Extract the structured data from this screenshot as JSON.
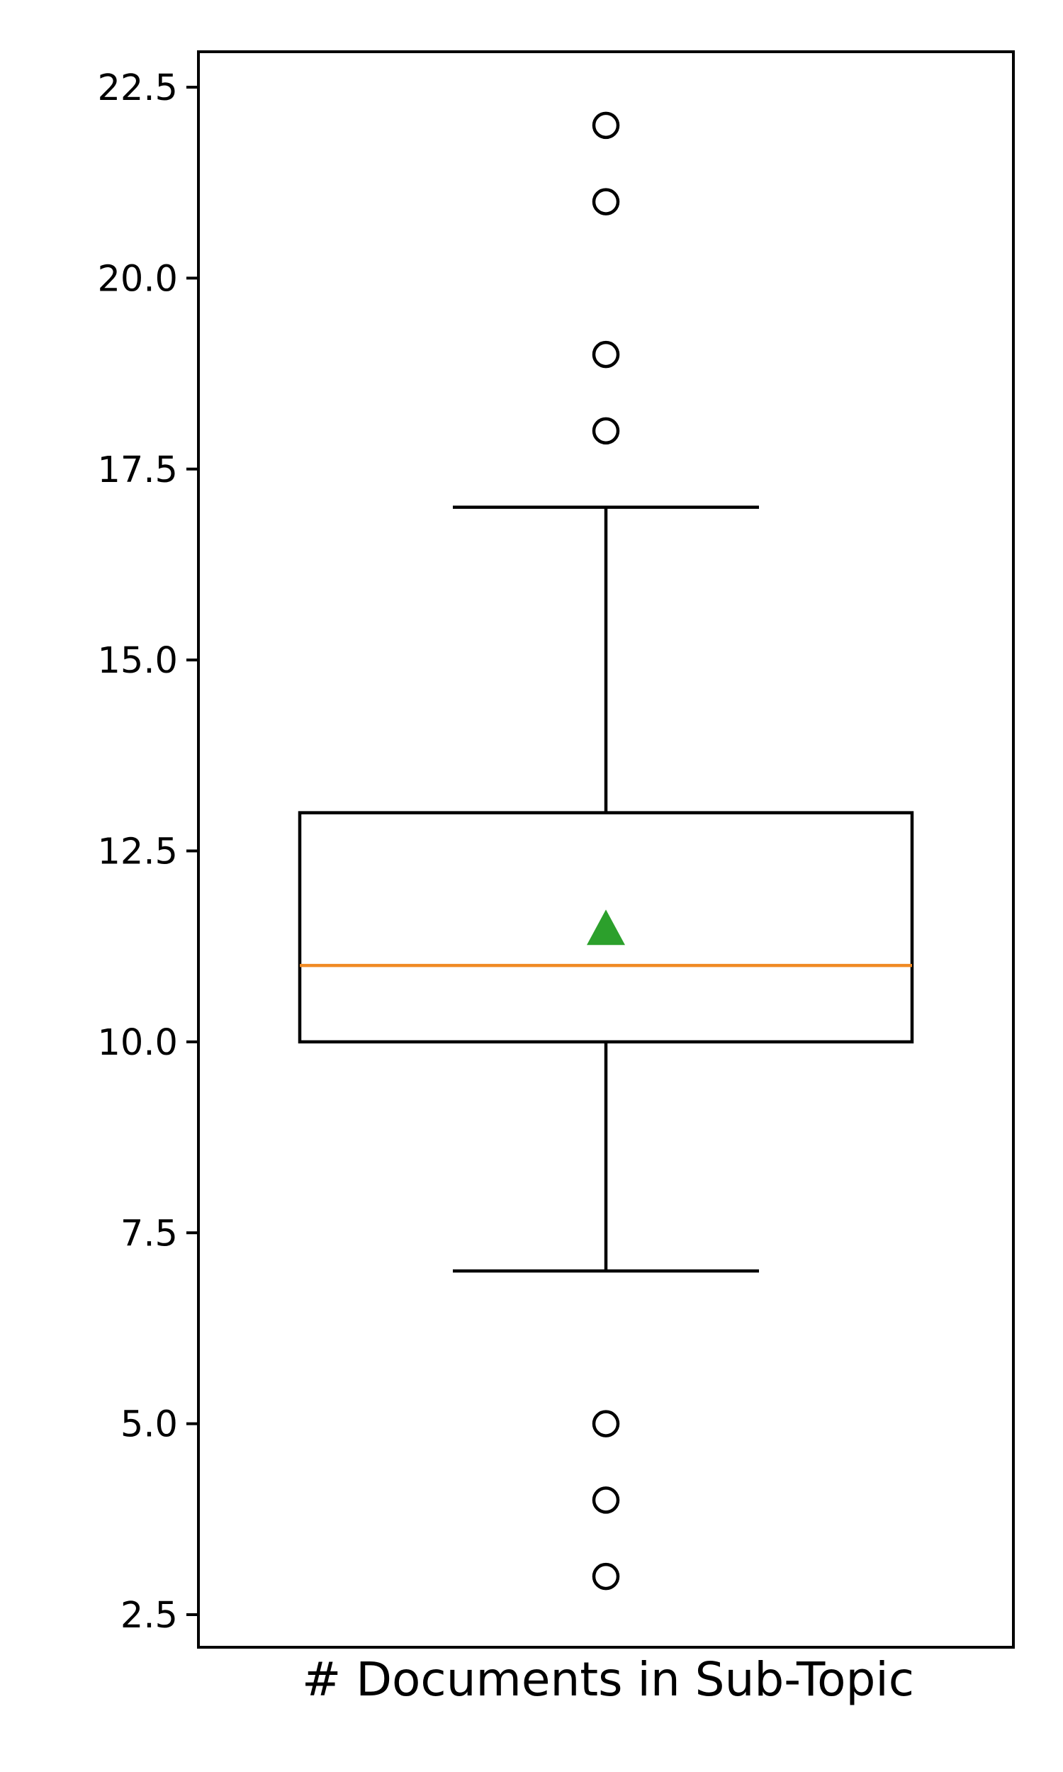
{
  "chart_data": {
    "type": "box",
    "title": "",
    "xlabel": "# Documents in Sub-Topic",
    "ylabel": "",
    "ylim": [
      2.0,
      23.0
    ],
    "yticks": [
      2.5,
      5.0,
      7.5,
      10.0,
      12.5,
      15.0,
      17.5,
      20.0,
      22.5
    ],
    "ytick_labels": [
      "2.5",
      "5.0",
      "7.5",
      "10.0",
      "12.5",
      "15.0",
      "17.5",
      "20.0",
      "22.5"
    ],
    "grid": false,
    "legend": "none",
    "box": {
      "whisker_low": 7,
      "q1": 10,
      "median": 11,
      "q3": 13,
      "whisker_high": 17,
      "mean": 11.5,
      "outliers": [
        3,
        4,
        5,
        18,
        19,
        21,
        22
      ]
    },
    "colors": {
      "box": "#000000",
      "median": "#f08a24",
      "mean": "#2ca02c",
      "outlier": "#000000"
    }
  }
}
